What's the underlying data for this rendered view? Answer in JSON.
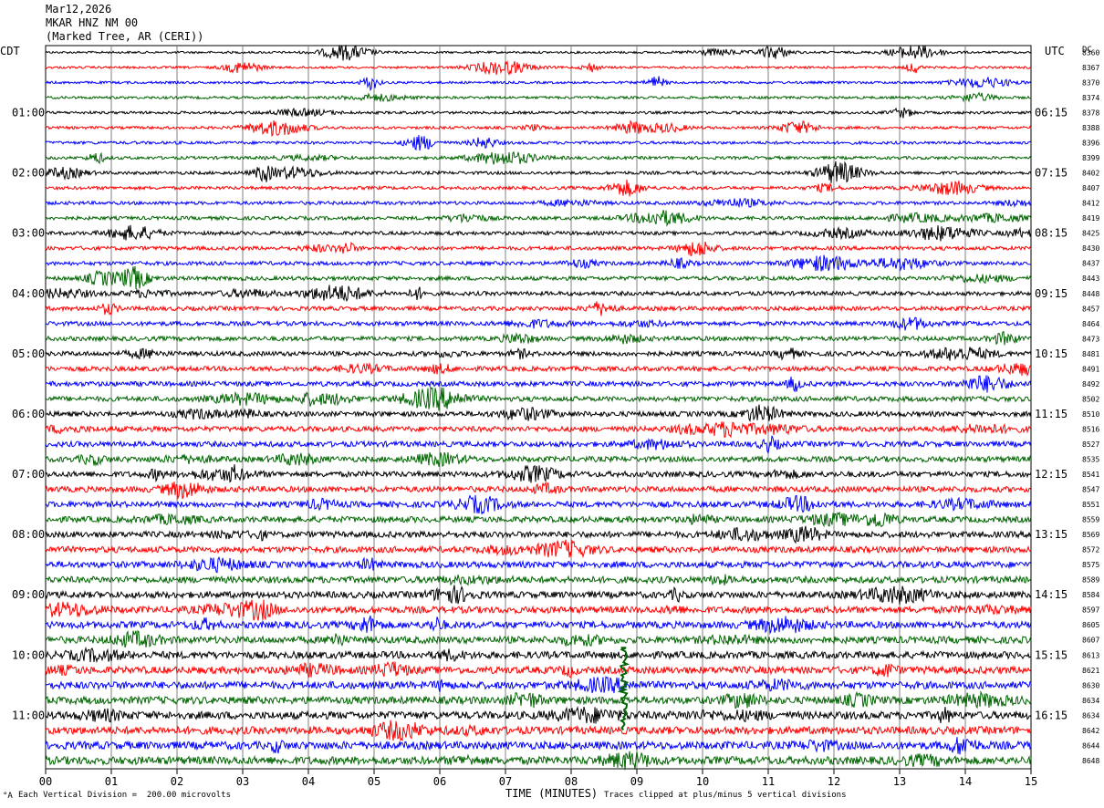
{
  "header": {
    "date": "Mar12,2026",
    "station": "MKAR HNZ NM 00",
    "location": "(Marked Tree, AR (CERI))"
  },
  "left_tz": "CDT",
  "right_tz": "UTC",
  "dc_label": "DC",
  "footer": {
    "scale_note": "Each Vertical Division =  200.00 microvolts",
    "xlabel": "TIME (MINUTES)",
    "clip_note": "Traces clipped at plus/minus 5 vertical divisions",
    "mark": "°A"
  },
  "colors": {
    "cycle": [
      "#000000",
      "#ff0000",
      "#0000ff",
      "#006400"
    ],
    "grid": "#808080"
  },
  "chart_data": {
    "type": "line",
    "xlim": [
      0,
      15
    ],
    "x_ticks": [
      "00",
      "01",
      "02",
      "03",
      "04",
      "05",
      "06",
      "07",
      "08",
      "09",
      "10",
      "11",
      "12",
      "13",
      "14",
      "15"
    ],
    "left_hour_labels": [
      "01:00",
      "02:00",
      "03:00",
      "04:00",
      "05:00",
      "06:00",
      "07:00",
      "08:00",
      "09:00",
      "10:00",
      "11:00"
    ],
    "right_hour_labels": [
      "06:15",
      "07:15",
      "08:15",
      "09:15",
      "10:15",
      "11:15",
      "12:15",
      "13:15",
      "14:15",
      "15:15",
      "16:15"
    ],
    "trace_count": 48,
    "dc_offsets": [
      "8360",
      "8367",
      "8370",
      "8374",
      "8378",
      "8388",
      "8396",
      "8399",
      "8402",
      "8407",
      "8412",
      "8419",
      "8425",
      "8430",
      "8437",
      "8443",
      "8448",
      "8457",
      "8464",
      "8473",
      "8481",
      "8491",
      "8492",
      "8502",
      "8510",
      "8516",
      "8527",
      "8535",
      "8541",
      "8547",
      "8551",
      "8559",
      "8569",
      "8572",
      "8575",
      "8589",
      "8584",
      "8597",
      "8605",
      "8607",
      "8613",
      "8621",
      "8630",
      "8634",
      "8634",
      "8642",
      "8644",
      "8648"
    ]
  }
}
